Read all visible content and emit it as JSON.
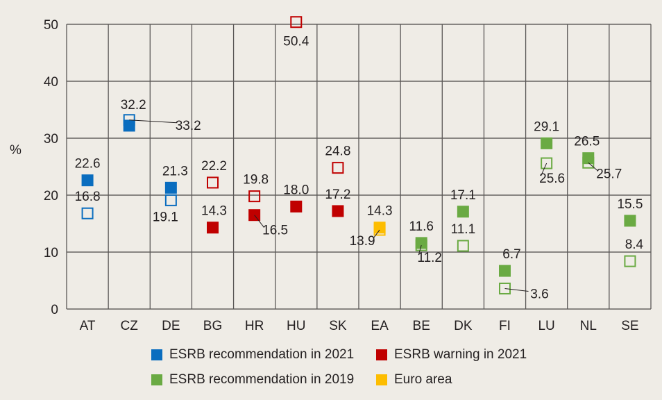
{
  "chart_data": {
    "type": "scatter",
    "title": "",
    "ylabel": "%",
    "xlabel": "",
    "ylim": [
      0,
      50
    ],
    "yticks": [
      0,
      10,
      20,
      30,
      40,
      50
    ],
    "grid": true,
    "categories": [
      "AT",
      "CZ",
      "DE",
      "BG",
      "HR",
      "HU",
      "SK",
      "EA",
      "BE",
      "DK",
      "FI",
      "LU",
      "NL",
      "SE"
    ],
    "colors": {
      "blue": "#0a6dbf",
      "red": "#c00000",
      "green": "#6aaa43",
      "yellow": "#fdbd00"
    },
    "points": [
      {
        "cat": "AT",
        "value": 22.6,
        "label": "22.6",
        "color": "blue",
        "filled": true,
        "lx": 0,
        "ly": -18
      },
      {
        "cat": "AT",
        "value": 16.8,
        "label": "16.8",
        "color": "blue",
        "filled": false,
        "lx": 0,
        "ly": -18
      },
      {
        "cat": "CZ",
        "value": 32.2,
        "label": "32.2",
        "color": "blue",
        "filled": true,
        "lx": 6,
        "ly": -24
      },
      {
        "cat": "CZ",
        "value": 33.2,
        "label": "33.2",
        "color": "blue",
        "filled": false,
        "lx": 85,
        "ly": 14,
        "leader": true
      },
      {
        "cat": "DE",
        "value": 21.3,
        "label": "21.3",
        "color": "blue",
        "filled": true,
        "lx": 6,
        "ly": -18
      },
      {
        "cat": "DE",
        "value": 19.1,
        "label": "19.1",
        "color": "blue",
        "filled": false,
        "lx": -8,
        "ly": 30
      },
      {
        "cat": "BG",
        "value": 22.2,
        "label": "22.2",
        "color": "red",
        "filled": false,
        "lx": 2,
        "ly": -18
      },
      {
        "cat": "BG",
        "value": 14.3,
        "label": "14.3",
        "color": "red",
        "filled": true,
        "lx": 2,
        "ly": -18
      },
      {
        "cat": "HR",
        "value": 19.8,
        "label": "19.8",
        "color": "red",
        "filled": false,
        "lx": 2,
        "ly": -18
      },
      {
        "cat": "HR",
        "value": 16.5,
        "label": "16.5",
        "color": "red",
        "filled": true,
        "lx": 30,
        "ly": 28,
        "leader": true
      },
      {
        "cat": "HU",
        "value": 50.4,
        "label": "50.4",
        "color": "red",
        "filled": false,
        "lx": 0,
        "ly": 34
      },
      {
        "cat": "HU",
        "value": 18.0,
        "label": "18.0",
        "color": "red",
        "filled": true,
        "lx": 0,
        "ly": -18
      },
      {
        "cat": "SK",
        "value": 24.8,
        "label": "24.8",
        "color": "red",
        "filled": false,
        "lx": 0,
        "ly": -18
      },
      {
        "cat": "SK",
        "value": 17.2,
        "label": "17.2",
        "color": "red",
        "filled": true,
        "lx": 0,
        "ly": -18
      },
      {
        "cat": "EA",
        "value": 14.3,
        "label": "14.3",
        "color": "yellow",
        "filled": true,
        "lx": 0,
        "ly": -18
      },
      {
        "cat": "EA",
        "value": 13.9,
        "label": "13.9",
        "color": "yellow",
        "filled": false,
        "lx": -25,
        "ly": 22,
        "leader": true
      },
      {
        "cat": "BE",
        "value": 11.6,
        "label": "11.6",
        "color": "green",
        "filled": true,
        "lx": 0,
        "ly": -18
      },
      {
        "cat": "BE",
        "value": 11.2,
        "label": "11.2",
        "color": "green",
        "filled": false,
        "lx": 12,
        "ly": 24,
        "leader": true
      },
      {
        "cat": "DK",
        "value": 17.1,
        "label": "17.1",
        "color": "green",
        "filled": true,
        "lx": 0,
        "ly": -18
      },
      {
        "cat": "DK",
        "value": 11.1,
        "label": "11.1",
        "color": "green",
        "filled": false,
        "lx": 0,
        "ly": -18
      },
      {
        "cat": "FI",
        "value": 6.7,
        "label": "6.7",
        "color": "green",
        "filled": true,
        "lx": 10,
        "ly": -18
      },
      {
        "cat": "FI",
        "value": 3.6,
        "label": "3.6",
        "color": "green",
        "filled": false,
        "lx": 50,
        "ly": 14,
        "leader": true
      },
      {
        "cat": "LU",
        "value": 29.1,
        "label": "29.1",
        "color": "green",
        "filled": true,
        "lx": 0,
        "ly": -18
      },
      {
        "cat": "LU",
        "value": 25.6,
        "label": "25.6",
        "color": "green",
        "filled": false,
        "lx": 8,
        "ly": 28,
        "leader": true
      },
      {
        "cat": "NL",
        "value": 26.5,
        "label": "26.5",
        "color": "green",
        "filled": true,
        "lx": -2,
        "ly": -18
      },
      {
        "cat": "NL",
        "value": 25.7,
        "label": "25.7",
        "color": "green",
        "filled": false,
        "lx": 30,
        "ly": 22,
        "leader": true
      },
      {
        "cat": "SE",
        "value": 15.5,
        "label": "15.5",
        "color": "green",
        "filled": true,
        "lx": 0,
        "ly": -18
      },
      {
        "cat": "SE",
        "value": 8.4,
        "label": "8.4",
        "color": "green",
        "filled": false,
        "lx": 6,
        "ly": -18
      }
    ],
    "legend": [
      {
        "label": "ESRB recommendation in 2021",
        "color": "#0a6dbf"
      },
      {
        "label": "ESRB warning in 2021",
        "color": "#c00000"
      },
      {
        "label": "ESRB recommendation in 2019",
        "color": "#6aaa43"
      },
      {
        "label": "Euro area",
        "color": "#fdbd00"
      }
    ]
  }
}
